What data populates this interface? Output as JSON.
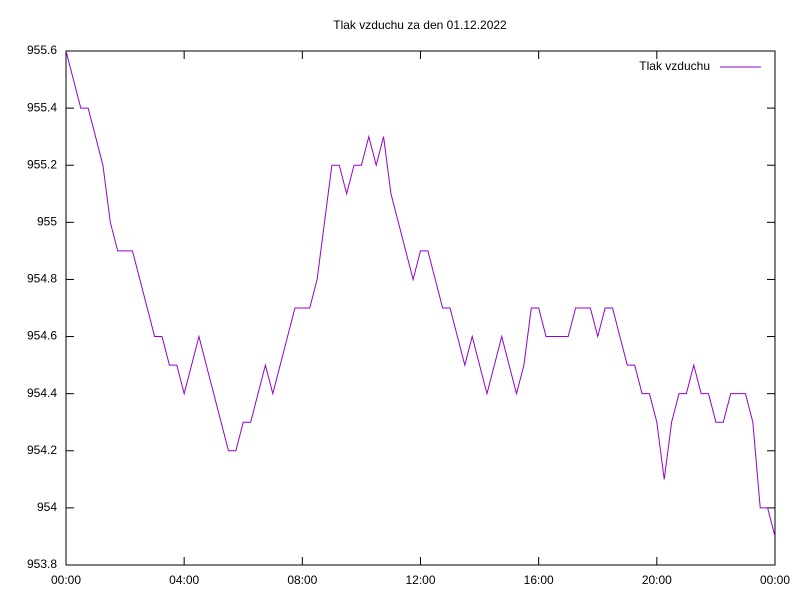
{
  "chart_data": {
    "type": "line",
    "title": "Tlak vzduchu za den 01.12.2022",
    "x": [
      0,
      0.25,
      0.5,
      0.75,
      1,
      1.25,
      1.5,
      1.75,
      2,
      2.25,
      2.5,
      2.75,
      3,
      3.25,
      3.5,
      3.75,
      4,
      4.25,
      4.5,
      4.75,
      5,
      5.25,
      5.5,
      5.75,
      6,
      6.25,
      6.5,
      6.75,
      7,
      7.25,
      7.5,
      7.75,
      8,
      8.25,
      8.5,
      8.75,
      9,
      9.25,
      9.5,
      9.75,
      10,
      10.25,
      10.5,
      10.75,
      11,
      11.25,
      11.5,
      11.75,
      12,
      12.25,
      12.5,
      12.75,
      13,
      13.25,
      13.5,
      13.75,
      14,
      14.25,
      14.5,
      14.75,
      15,
      15.25,
      15.5,
      15.75,
      16,
      16.25,
      16.5,
      16.75,
      17,
      17.25,
      17.5,
      17.75,
      18,
      18.25,
      18.5,
      18.75,
      19,
      19.25,
      19.5,
      19.75,
      20,
      20.25,
      20.5,
      20.75,
      21,
      21.25,
      21.5,
      21.75,
      22,
      22.25,
      22.5,
      22.75,
      23,
      23.25,
      23.5,
      23.75,
      24
    ],
    "series": [
      {
        "name": "Tlak vzduchu",
        "color": "#9400d3",
        "values": [
          955.6,
          955.5,
          955.4,
          955.4,
          955.3,
          955.2,
          955.0,
          954.9,
          954.9,
          954.9,
          954.8,
          954.7,
          954.6,
          954.6,
          954.5,
          954.5,
          954.4,
          954.5,
          954.6,
          954.5,
          954.4,
          954.3,
          954.2,
          954.2,
          954.3,
          954.3,
          954.4,
          954.5,
          954.4,
          954.5,
          954.6,
          954.7,
          954.7,
          954.7,
          954.8,
          955.0,
          955.2,
          955.2,
          955.1,
          955.2,
          955.2,
          955.3,
          955.2,
          955.3,
          955.1,
          955.0,
          954.9,
          954.8,
          954.9,
          954.9,
          954.8,
          954.7,
          954.7,
          954.6,
          954.5,
          954.6,
          954.5,
          954.4,
          954.5,
          954.6,
          954.5,
          954.4,
          954.5,
          954.7,
          954.7,
          954.6,
          954.6,
          954.6,
          954.6,
          954.7,
          954.7,
          954.7,
          954.6,
          954.7,
          954.7,
          954.6,
          954.5,
          954.5,
          954.4,
          954.4,
          954.3,
          954.1,
          954.3,
          954.4,
          954.4,
          954.5,
          954.4,
          954.4,
          954.3,
          954.3,
          954.4,
          954.4,
          954.4,
          954.3,
          954.0,
          954.0,
          953.9
        ]
      }
    ],
    "xlim": [
      0,
      24
    ],
    "xticks": [
      {
        "value": 0,
        "label": "00:00"
      },
      {
        "value": 4,
        "label": "04:00"
      },
      {
        "value": 8,
        "label": "08:00"
      },
      {
        "value": 12,
        "label": "12:00"
      },
      {
        "value": 16,
        "label": "16:00"
      },
      {
        "value": 20,
        "label": "20:00"
      },
      {
        "value": 24,
        "label": "00:00"
      }
    ],
    "ylim": [
      953.8,
      955.6
    ],
    "yticks": [
      953.8,
      954,
      954.2,
      954.4,
      954.6,
      954.8,
      955,
      955.2,
      955.4,
      955.6
    ],
    "legend": "top-right"
  }
}
